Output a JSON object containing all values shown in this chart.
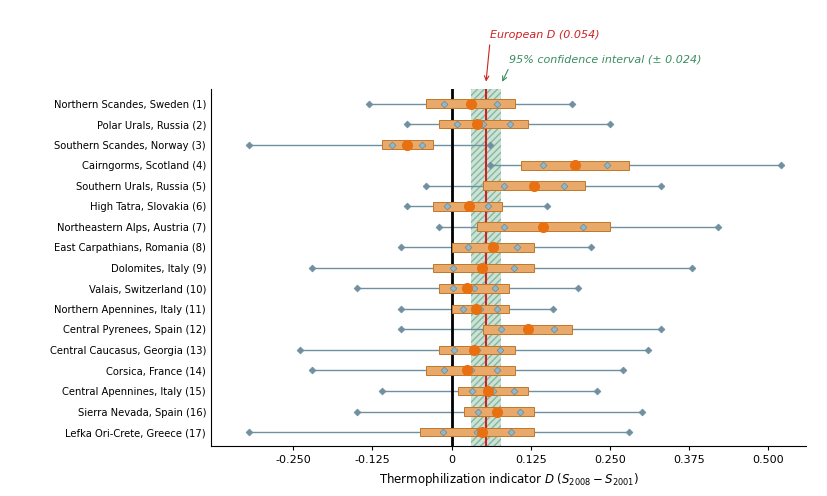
{
  "regions": [
    "Northern Scandes, Sweden (1)",
    "Polar Urals, Russia (2)",
    "Southern Scandes, Norway (3)",
    "Cairngorms, Scotland (4)",
    "Southern Urals, Russia (5)",
    "High Tatra, Slovakia (6)",
    "Northeastern Alps, Austria (7)",
    "East Carpathians, Romania (8)",
    "Dolomites, Italy (9)",
    "Valais, Switzerland (10)",
    "Northern Apennines, Italy (11)",
    "Central Pyrenees, Spain (12)",
    "Central Caucasus, Georgia (13)",
    "Corsica, France (14)",
    "Central Apennines, Italy (15)",
    "Sierra Nevada, Spain (16)",
    "Lefka Ori-Crete, Greece (17)"
  ],
  "mean_D": [
    0.03,
    0.04,
    -0.07,
    0.195,
    0.13,
    0.028,
    0.145,
    0.065,
    0.048,
    0.025,
    0.038,
    0.12,
    0.035,
    0.025,
    0.058,
    0.072,
    0.048
  ],
  "ci_low": [
    -0.13,
    -0.07,
    -0.32,
    0.06,
    -0.04,
    -0.07,
    -0.02,
    -0.08,
    -0.22,
    -0.15,
    -0.08,
    -0.08,
    -0.24,
    -0.22,
    -0.11,
    -0.15,
    -0.32
  ],
  "ci_high": [
    0.19,
    0.25,
    0.06,
    0.52,
    0.33,
    0.15,
    0.42,
    0.22,
    0.38,
    0.2,
    0.16,
    0.33,
    0.31,
    0.27,
    0.23,
    0.3,
    0.28
  ],
  "bar_low": [
    -0.04,
    -0.02,
    -0.11,
    0.11,
    0.05,
    -0.03,
    0.04,
    0.0,
    -0.03,
    -0.02,
    0.0,
    0.05,
    -0.02,
    -0.04,
    0.01,
    0.02,
    -0.05
  ],
  "bar_high": [
    0.1,
    0.12,
    -0.03,
    0.28,
    0.21,
    0.08,
    0.25,
    0.13,
    0.13,
    0.09,
    0.09,
    0.19,
    0.1,
    0.1,
    0.12,
    0.13,
    0.13
  ],
  "european_D": 0.054,
  "european_CI": 0.024,
  "bar_color": "#e8a96a",
  "bar_edge_color": "#c07828",
  "ci_line_color": "#7090a0",
  "dot_color": "#e87010",
  "green_band_color": "#3a8e60",
  "red_line_color": "#cc2222",
  "zero_line_color": "black",
  "xlim": [
    -0.38,
    0.56
  ],
  "xticks": [
    -0.25,
    -0.125,
    0.0,
    0.125,
    0.25,
    0.375,
    0.5
  ],
  "xtick_labels": [
    "-0.250",
    "-0.125",
    "0",
    "0.125",
    "0.250",
    "0.375",
    "0.500"
  ],
  "european_D_label": "European D (0.054)",
  "ci_label": "95% confidence interval (± 0.024)",
  "european_D_color": "#cc2222",
  "ci_text_color": "#3a8e60",
  "xlabel": "Thermophilization indicator D"
}
